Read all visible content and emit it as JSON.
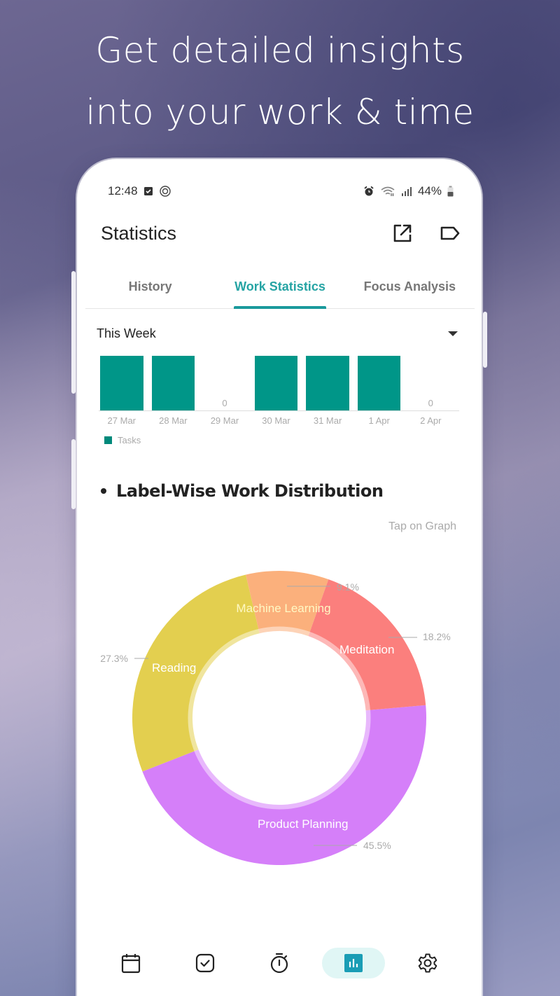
{
  "headline": {
    "line1": "Get detailed insights",
    "line2": "into your work & time"
  },
  "status_bar": {
    "time": "12:48",
    "left_icons": [
      "checkbox-notification-icon",
      "focus-timer-notification-icon"
    ],
    "right_icons": [
      "alarm-icon",
      "wifi-icon",
      "signal-icon"
    ],
    "battery": "44%"
  },
  "appbar": {
    "title": "Statistics",
    "actions": [
      "share-export-icon",
      "label-icon"
    ]
  },
  "tabs": [
    {
      "label": "History",
      "active": false
    },
    {
      "label": "Work Statistics",
      "active": true
    },
    {
      "label": "Focus Analysis",
      "active": false
    }
  ],
  "range_select": {
    "value": "This Week"
  },
  "section": {
    "title": "Label-Wise Work Distribution",
    "hint": "Tap on Graph"
  },
  "bottom_nav": [
    {
      "name": "calendar",
      "active": false
    },
    {
      "name": "tasks",
      "active": false
    },
    {
      "name": "timer",
      "active": false
    },
    {
      "name": "statistics",
      "active": true
    },
    {
      "name": "settings",
      "active": false
    }
  ],
  "colors": {
    "accent": "#26a4a4",
    "bar": "#009688",
    "reading": "#e3cf4f",
    "machine_learning": "#fbb07c",
    "meditation": "#fb7f7d",
    "product_planning": "#d57ff9"
  },
  "chart_data": [
    {
      "type": "bar",
      "title": "This Week",
      "categories": [
        "27 Mar",
        "28 Mar",
        "29 Mar",
        "30 Mar",
        "31 Mar",
        "1 Apr",
        "2 Apr"
      ],
      "series": [
        {
          "name": "Tasks",
          "values": [
            1,
            1,
            0,
            1,
            1,
            1,
            0
          ]
        }
      ],
      "zero_labels": [
        "",
        "",
        "0",
        "",
        "",
        "",
        "0"
      ],
      "legend": [
        "Tasks"
      ],
      "legend_position": "bottom-left",
      "grid": false
    },
    {
      "type": "pie",
      "title": "Label-Wise Work Distribution",
      "donut": true,
      "labels": [
        "Product Planning",
        "Reading",
        "Machine Learning",
        "Meditation"
      ],
      "values": [
        45.5,
        27.3,
        9.1,
        18.2
      ],
      "value_labels": [
        "45.5%",
        "27.3%",
        "9.1%",
        "18.2%"
      ],
      "colors": [
        "#d57ff9",
        "#e3cf4f",
        "#fbb07c",
        "#fb7f7d"
      ]
    }
  ]
}
